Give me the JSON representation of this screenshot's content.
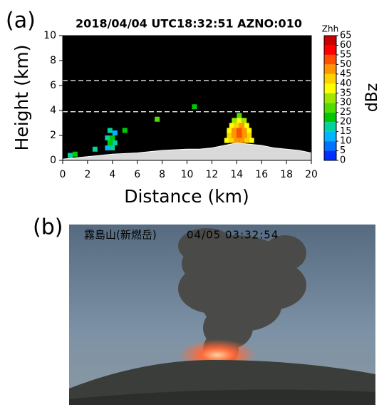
{
  "panels": [
    "(a)",
    "(b)"
  ],
  "photo": {
    "caption": "霧島山(新燃岳)",
    "timestamp": "04/05 03:32:54"
  },
  "chart_data": {
    "type": "heatmap",
    "title": "2018/04/04 UTC18:32:51 AZNO:010",
    "xlabel": "Distance (km)",
    "ylabel": "Height (km)",
    "xlim": [
      0,
      20
    ],
    "xticks": [
      0,
      2,
      4,
      6,
      8,
      10,
      12,
      14,
      16,
      18,
      20
    ],
    "ylim": [
      0,
      10
    ],
    "yticks": [
      0,
      2,
      4,
      6,
      8,
      10
    ],
    "background": "#000000",
    "hlines": [
      6.4,
      3.9
    ],
    "colorbar": {
      "title": "Zhh",
      "label": "dBz",
      "lim": [
        0,
        65
      ],
      "ticks": [
        0,
        5,
        10,
        15,
        20,
        25,
        30,
        35,
        40,
        45,
        50,
        55,
        60,
        65
      ],
      "colors": [
        "#0030ff",
        "#0070ff",
        "#00b4ff",
        "#00d2a0",
        "#00c800",
        "#50dc00",
        "#a0e600",
        "#ffff00",
        "#ffd200",
        "#ff9600",
        "#ff5000",
        "#ff0000",
        "#c80000"
      ]
    },
    "cells": {
      "x": [
        13.2,
        13.6,
        14.0,
        14.4,
        14.8,
        15.2,
        13.4,
        13.8,
        14.2,
        14.6,
        15.0,
        13.4,
        13.8,
        14.2,
        14.6,
        15.0,
        13.6,
        14.0,
        14.4,
        14.8,
        13.8,
        14.2,
        14.6,
        14.2,
        3.6,
        4.0,
        3.8,
        4.2,
        3.6,
        4.0,
        4.2,
        3.8,
        5.0,
        2.6,
        0.6,
        1.0,
        7.6,
        10.6
      ],
      "y": [
        1.6,
        1.6,
        1.6,
        1.6,
        1.6,
        1.6,
        2.0,
        2.0,
        2.0,
        2.0,
        2.0,
        2.4,
        2.4,
        2.4,
        2.4,
        2.4,
        2.8,
        2.8,
        2.8,
        2.8,
        3.2,
        3.2,
        3.2,
        3.6,
        1.0,
        1.0,
        1.4,
        1.4,
        1.8,
        1.8,
        2.2,
        2.4,
        2.4,
        0.9,
        0.4,
        0.5,
        3.3,
        4.3
      ],
      "values": [
        35,
        40,
        45,
        45,
        40,
        35,
        40,
        45,
        50,
        45,
        40,
        35,
        45,
        50,
        45,
        35,
        35,
        40,
        45,
        35,
        30,
        35,
        30,
        25,
        10,
        15,
        20,
        15,
        15,
        20,
        10,
        15,
        20,
        15,
        15,
        20,
        25,
        20
      ]
    },
    "terrain": {
      "color": "#d9d9d9",
      "x": [
        0,
        2,
        4,
        6,
        8,
        10,
        11,
        12,
        13,
        14,
        15,
        16,
        17,
        18,
        19,
        20
      ],
      "values": [
        0.1,
        0.3,
        0.5,
        0.6,
        0.8,
        0.9,
        0.9,
        1.0,
        1.2,
        1.4,
        1.3,
        1.2,
        1.0,
        0.9,
        0.8,
        0.6
      ]
    }
  }
}
